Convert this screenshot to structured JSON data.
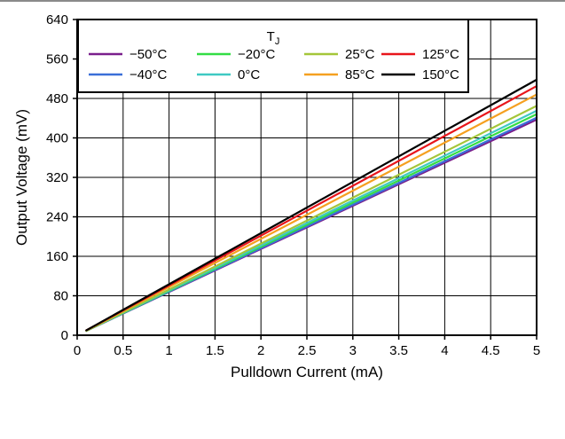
{
  "chart_data": {
    "type": "line",
    "xlabel": "Pulldown Current (mA)",
    "ylabel": "Output Voltage (mV)",
    "xlim": [
      0,
      5
    ],
    "ylim": [
      0,
      640
    ],
    "xticks": [
      "0",
      "0.5",
      "1",
      "1.5",
      "2",
      "2.5",
      "3",
      "3.5",
      "4",
      "4.5",
      "5"
    ],
    "yticks": [
      "0",
      "80",
      "160",
      "240",
      "320",
      "400",
      "480",
      "560",
      "640"
    ],
    "grid": true,
    "legend": {
      "title": "T",
      "title_subscript": "J",
      "placement": "top-left"
    },
    "series": [
      {
        "name": "−50°C",
        "color": "#7a1f8c",
        "x": [
          0.1,
          5
        ],
        "y": [
          9,
          437
        ]
      },
      {
        "name": "−40°C",
        "color": "#3a6fd8",
        "x": [
          0.1,
          5
        ],
        "y": [
          9,
          441
        ]
      },
      {
        "name": "−20°C",
        "color": "#33dd44",
        "x": [
          0.1,
          5
        ],
        "y": [
          9,
          448
        ]
      },
      {
        "name": "0°C",
        "color": "#3fc9c3",
        "x": [
          0.1,
          5
        ],
        "y": [
          9,
          455
        ]
      },
      {
        "name": "25°C",
        "color": "#a4c639",
        "x": [
          0.1,
          5
        ],
        "y": [
          9,
          465
        ]
      },
      {
        "name": "85°C",
        "color": "#f5a020",
        "x": [
          0.1,
          5
        ],
        "y": [
          10,
          488
        ]
      },
      {
        "name": "125°C",
        "color": "#e8151b",
        "x": [
          0.1,
          5
        ],
        "y": [
          10,
          505
        ]
      },
      {
        "name": "150°C",
        "color": "#000000",
        "x": [
          0.1,
          5
        ],
        "y": [
          10,
          518
        ]
      }
    ]
  }
}
